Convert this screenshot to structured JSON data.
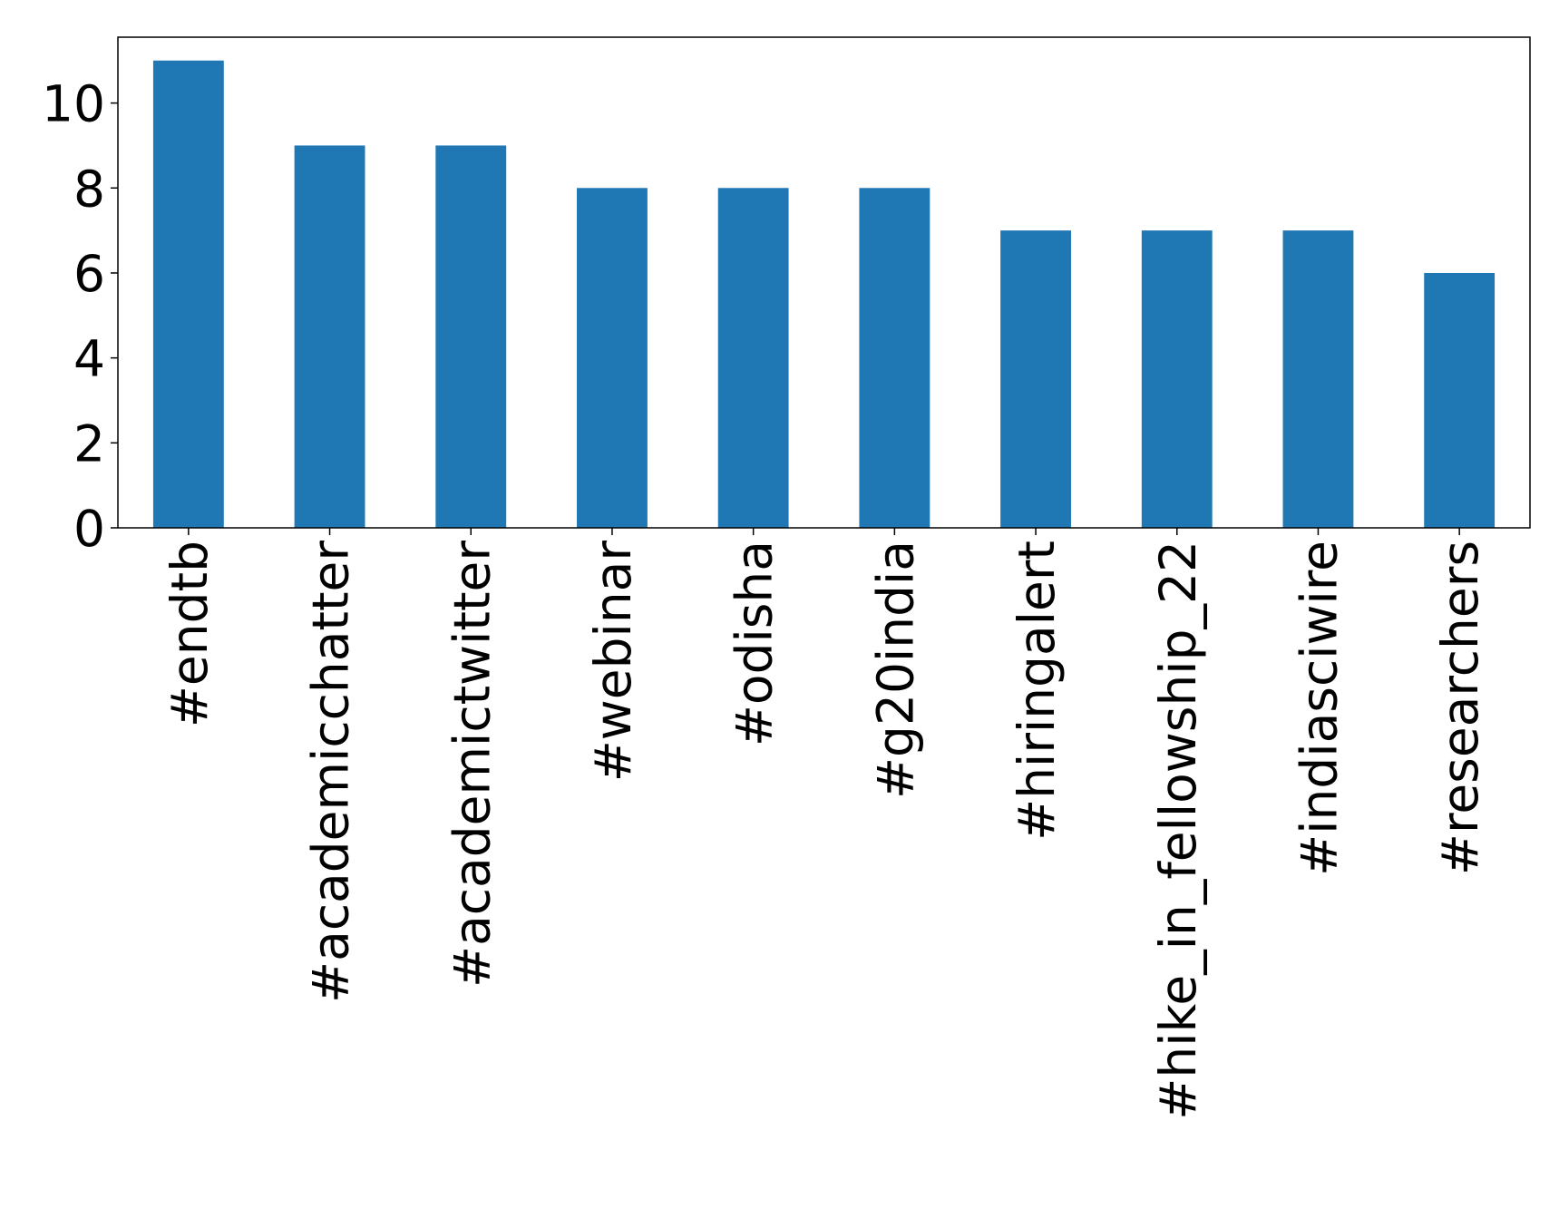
{
  "chart_data": {
    "type": "bar",
    "categories": [
      "#endtb",
      "#academicchatter",
      "#academictwitter",
      "#webinar",
      "#odisha",
      "#g20india",
      "#hiringalert",
      "#hike_in_fellowship_22",
      "#indiasciwire",
      "#researchers"
    ],
    "values": [
      11,
      9,
      9,
      8,
      8,
      8,
      7,
      7,
      7,
      6
    ],
    "color": "#1f77b4",
    "ylim": [
      0,
      11.55
    ],
    "yticks": [
      0,
      2,
      4,
      6,
      8,
      10
    ],
    "grid": false
  }
}
